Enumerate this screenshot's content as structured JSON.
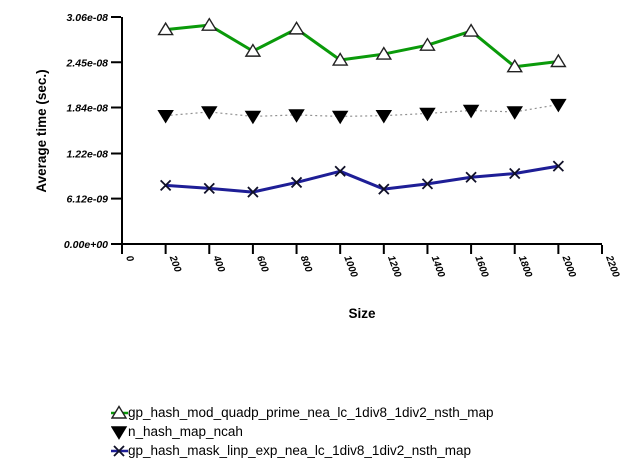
{
  "chart_data": {
    "type": "line",
    "title": "",
    "xlabel": "Size",
    "ylabel": "Average time (sec.)",
    "xlim": [
      0,
      2200
    ],
    "ylim": [
      0,
      3.06e-08
    ],
    "grid": false,
    "legend_position": "bottom-left",
    "xtick_values": [
      0,
      200,
      400,
      600,
      800,
      1000,
      1200,
      1400,
      1600,
      1800,
      2000,
      2200
    ],
    "xtick_labels": [
      "0",
      "200",
      "400",
      "600",
      "800",
      "1000",
      "1200",
      "1400",
      "1600",
      "1800",
      "2000",
      "2200"
    ],
    "ytick_values": [
      0,
      6.12e-09,
      1.22e-08,
      1.84e-08,
      2.45e-08,
      3.06e-08
    ],
    "ytick_labels": [
      "0.00e+00",
      "6.12e-09",
      "1.22e-08",
      "1.84e-08",
      "2.45e-08",
      "3.06e-08"
    ],
    "x": [
      200,
      400,
      600,
      800,
      1000,
      1200,
      1400,
      1600,
      1800,
      2000
    ],
    "series": [
      {
        "name": "gp_hash_mod_quadp_prime_nea_lc_1div8_1div2_nsth_map",
        "color": "#0a9a0a",
        "line_style": "solid",
        "line_width": 3,
        "marker": "triangle-up-open",
        "marker_stroke": "#222222",
        "marker_fill": "#ffffff",
        "values": [
          2.89e-08,
          2.95e-08,
          2.6e-08,
          2.9e-08,
          2.48e-08,
          2.56e-08,
          2.68e-08,
          2.87e-08,
          2.39e-08,
          2.46e-08
        ]
      },
      {
        "name": "n_hash_map_ncah",
        "color": "#909090",
        "line_style": "dotted",
        "line_width": 1.2,
        "marker": "triangle-down-filled",
        "marker_stroke": "#000000",
        "marker_fill": "#000000",
        "values": [
          1.73e-08,
          1.78e-08,
          1.72e-08,
          1.74e-08,
          1.72e-08,
          1.73e-08,
          1.76e-08,
          1.8e-08,
          1.78e-08,
          1.88e-08
        ]
      },
      {
        "name": "gp_hash_mask_linp_exp_nea_lc_1div8_1div2_nsth_map",
        "color": "#1e1e96",
        "line_style": "solid",
        "line_width": 3,
        "marker": "x",
        "marker_stroke": "#101028",
        "marker_fill": "none",
        "values": [
          7.9e-09,
          7.5e-09,
          7e-09,
          8.3e-09,
          9.8e-09,
          7.4e-09,
          8.1e-09,
          9e-09,
          9.5e-09,
          1.05e-08
        ]
      }
    ]
  }
}
